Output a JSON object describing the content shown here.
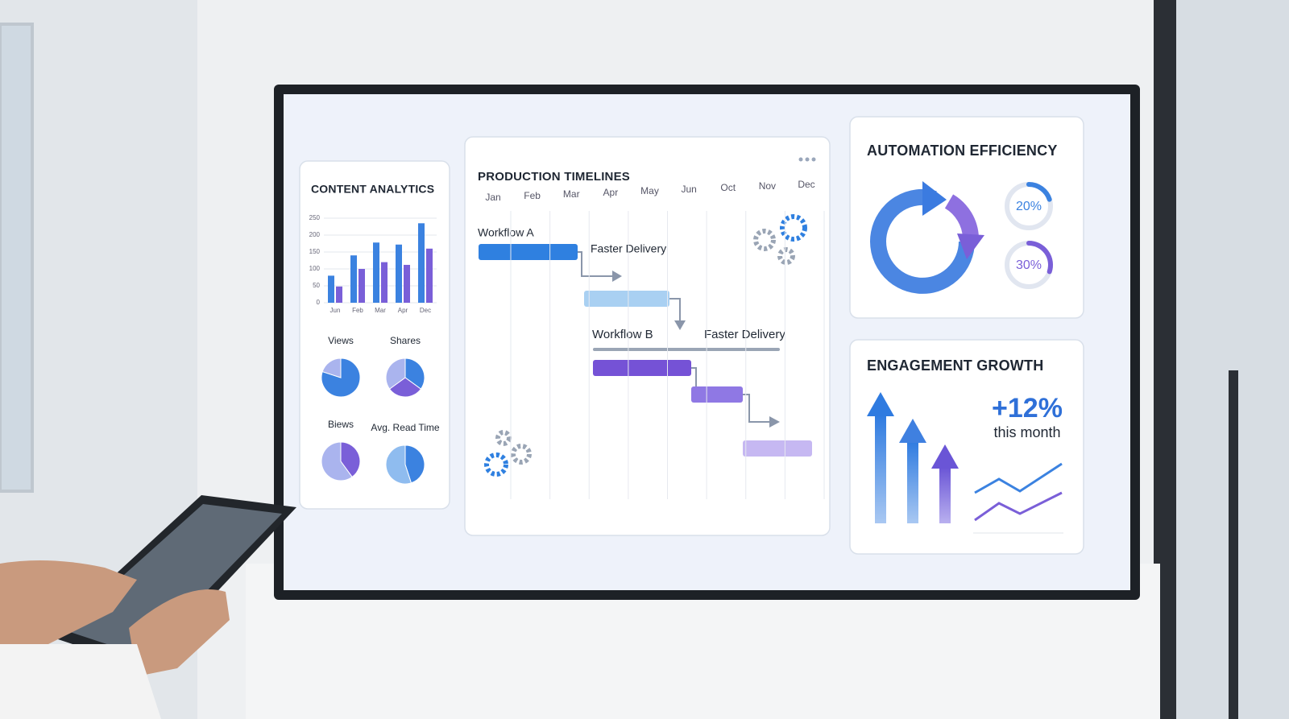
{
  "content_analytics": {
    "title": "CONTENT ANALYTICS",
    "bar_chart": {
      "type": "bar",
      "categories": [
        "Jun",
        "Feb",
        "Mar",
        "Apr",
        "Dec"
      ],
      "series": [
        {
          "color": "#3b82e0",
          "values": [
            80,
            140,
            178,
            172,
            235
          ]
        },
        {
          "color": "#7a5fd8",
          "values": [
            48,
            100,
            120,
            112,
            160
          ]
        }
      ],
      "ylim": [
        0,
        250
      ],
      "yticks": [
        0,
        50,
        100,
        150,
        200,
        250
      ],
      "grid": true
    },
    "pies": [
      {
        "label": "Views",
        "values": [
          80,
          20
        ],
        "colors": [
          "#3b82e0",
          "#aab4ee"
        ]
      },
      {
        "label": "Shares",
        "values": [
          35,
          30,
          35
        ],
        "colors": [
          "#3b82e0",
          "#7a5fd8",
          "#aab4ee"
        ]
      },
      {
        "label": "Biews",
        "values": [
          40,
          60
        ],
        "colors": [
          "#7a5fd8",
          "#aab4ee"
        ]
      },
      {
        "label": "Avg. Read Time",
        "values": [
          45,
          55
        ],
        "colors": [
          "#3b82e0",
          "#8fbcef"
        ]
      }
    ]
  },
  "production_timelines": {
    "title": "PRODUCTION TIMELINES",
    "months": [
      "Jan",
      "Feb",
      "Mar",
      "Apr",
      "May",
      "Jun",
      "Oct",
      "Nov",
      "Dec"
    ],
    "workflow_a": "Workflow A",
    "workflow_a_note": "Faster Delivery",
    "workflow_b": "Workflow B",
    "workflow_b_note": "Faster Delivery"
  },
  "automation_efficiency": {
    "title": "AUTOMATION EFFICIENCY",
    "gauges": [
      {
        "value": 20,
        "label": "20%",
        "color": "#3b82e0"
      },
      {
        "value": 30,
        "label": "30%",
        "color": "#7a5fd8"
      }
    ]
  },
  "engagement_growth": {
    "title": "ENGAGEMENT GROWTH",
    "change": "+12%",
    "period": "this month"
  }
}
